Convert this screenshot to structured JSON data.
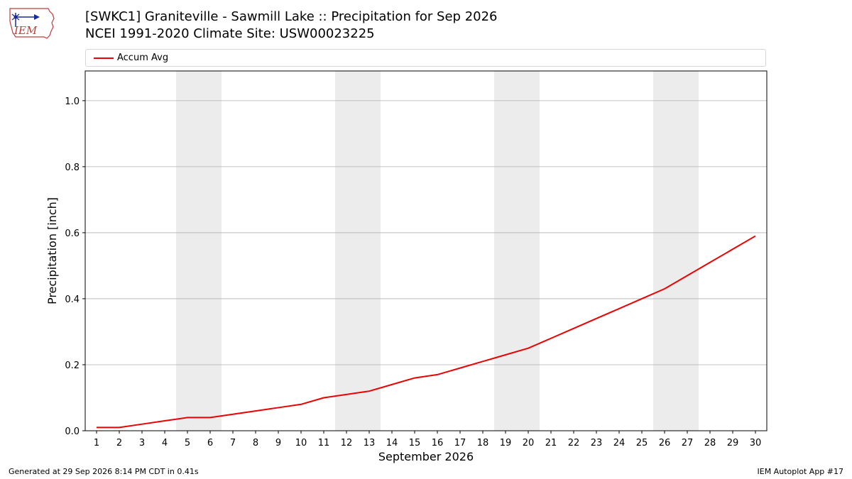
{
  "logo_text": "IEM",
  "title": {
    "line1": "[SWKC1] Graniteville - Sawmill Lake :: Precipitation for Sep 2026",
    "line2": "NCEI 1991-2020 Climate Site: USW00023225"
  },
  "footer": {
    "left": "Generated at 29 Sep 2026 8:14 PM CDT in 0.41s",
    "right": "IEM Autoplot App #17"
  },
  "colors": {
    "series": "#ee0000",
    "weekend_band": "#ececec",
    "grid": "#b0b0b0"
  },
  "chart_data": {
    "type": "line",
    "xlabel": "September 2026",
    "ylabel": "Precipitation [inch]",
    "xlim": [
      0.5,
      30.5
    ],
    "ylim": [
      0,
      1.09
    ],
    "yticks": [
      0.0,
      0.2,
      0.4,
      0.6,
      0.8,
      1.0
    ],
    "ytick_labels": [
      "0.0",
      "0.2",
      "0.4",
      "0.6",
      "0.8",
      "1.0"
    ],
    "x": [
      1,
      2,
      3,
      4,
      5,
      6,
      7,
      8,
      9,
      10,
      11,
      12,
      13,
      14,
      15,
      16,
      17,
      18,
      19,
      20,
      21,
      22,
      23,
      24,
      25,
      26,
      27,
      28,
      29,
      30
    ],
    "xtick_labels": [
      "1",
      "2",
      "3",
      "4",
      "5",
      "6",
      "7",
      "8",
      "9",
      "10",
      "11",
      "12",
      "13",
      "14",
      "15",
      "16",
      "17",
      "18",
      "19",
      "20",
      "21",
      "22",
      "23",
      "24",
      "25",
      "26",
      "27",
      "28",
      "29",
      "30"
    ],
    "weekend_days": [
      [
        5,
        6
      ],
      [
        12,
        13
      ],
      [
        19,
        20
      ],
      [
        26,
        27
      ]
    ],
    "grid": "y",
    "legend_position": "top",
    "series": [
      {
        "name": "Accum Avg",
        "color": "#ee0000",
        "values": [
          0.01,
          0.01,
          0.02,
          0.03,
          0.04,
          0.04,
          0.05,
          0.06,
          0.07,
          0.08,
          0.1,
          0.11,
          0.12,
          0.14,
          0.16,
          0.17,
          0.19,
          0.21,
          0.23,
          0.25,
          0.28,
          0.31,
          0.34,
          0.37,
          0.4,
          0.43,
          0.47,
          0.51,
          0.55,
          0.59
        ]
      }
    ]
  }
}
